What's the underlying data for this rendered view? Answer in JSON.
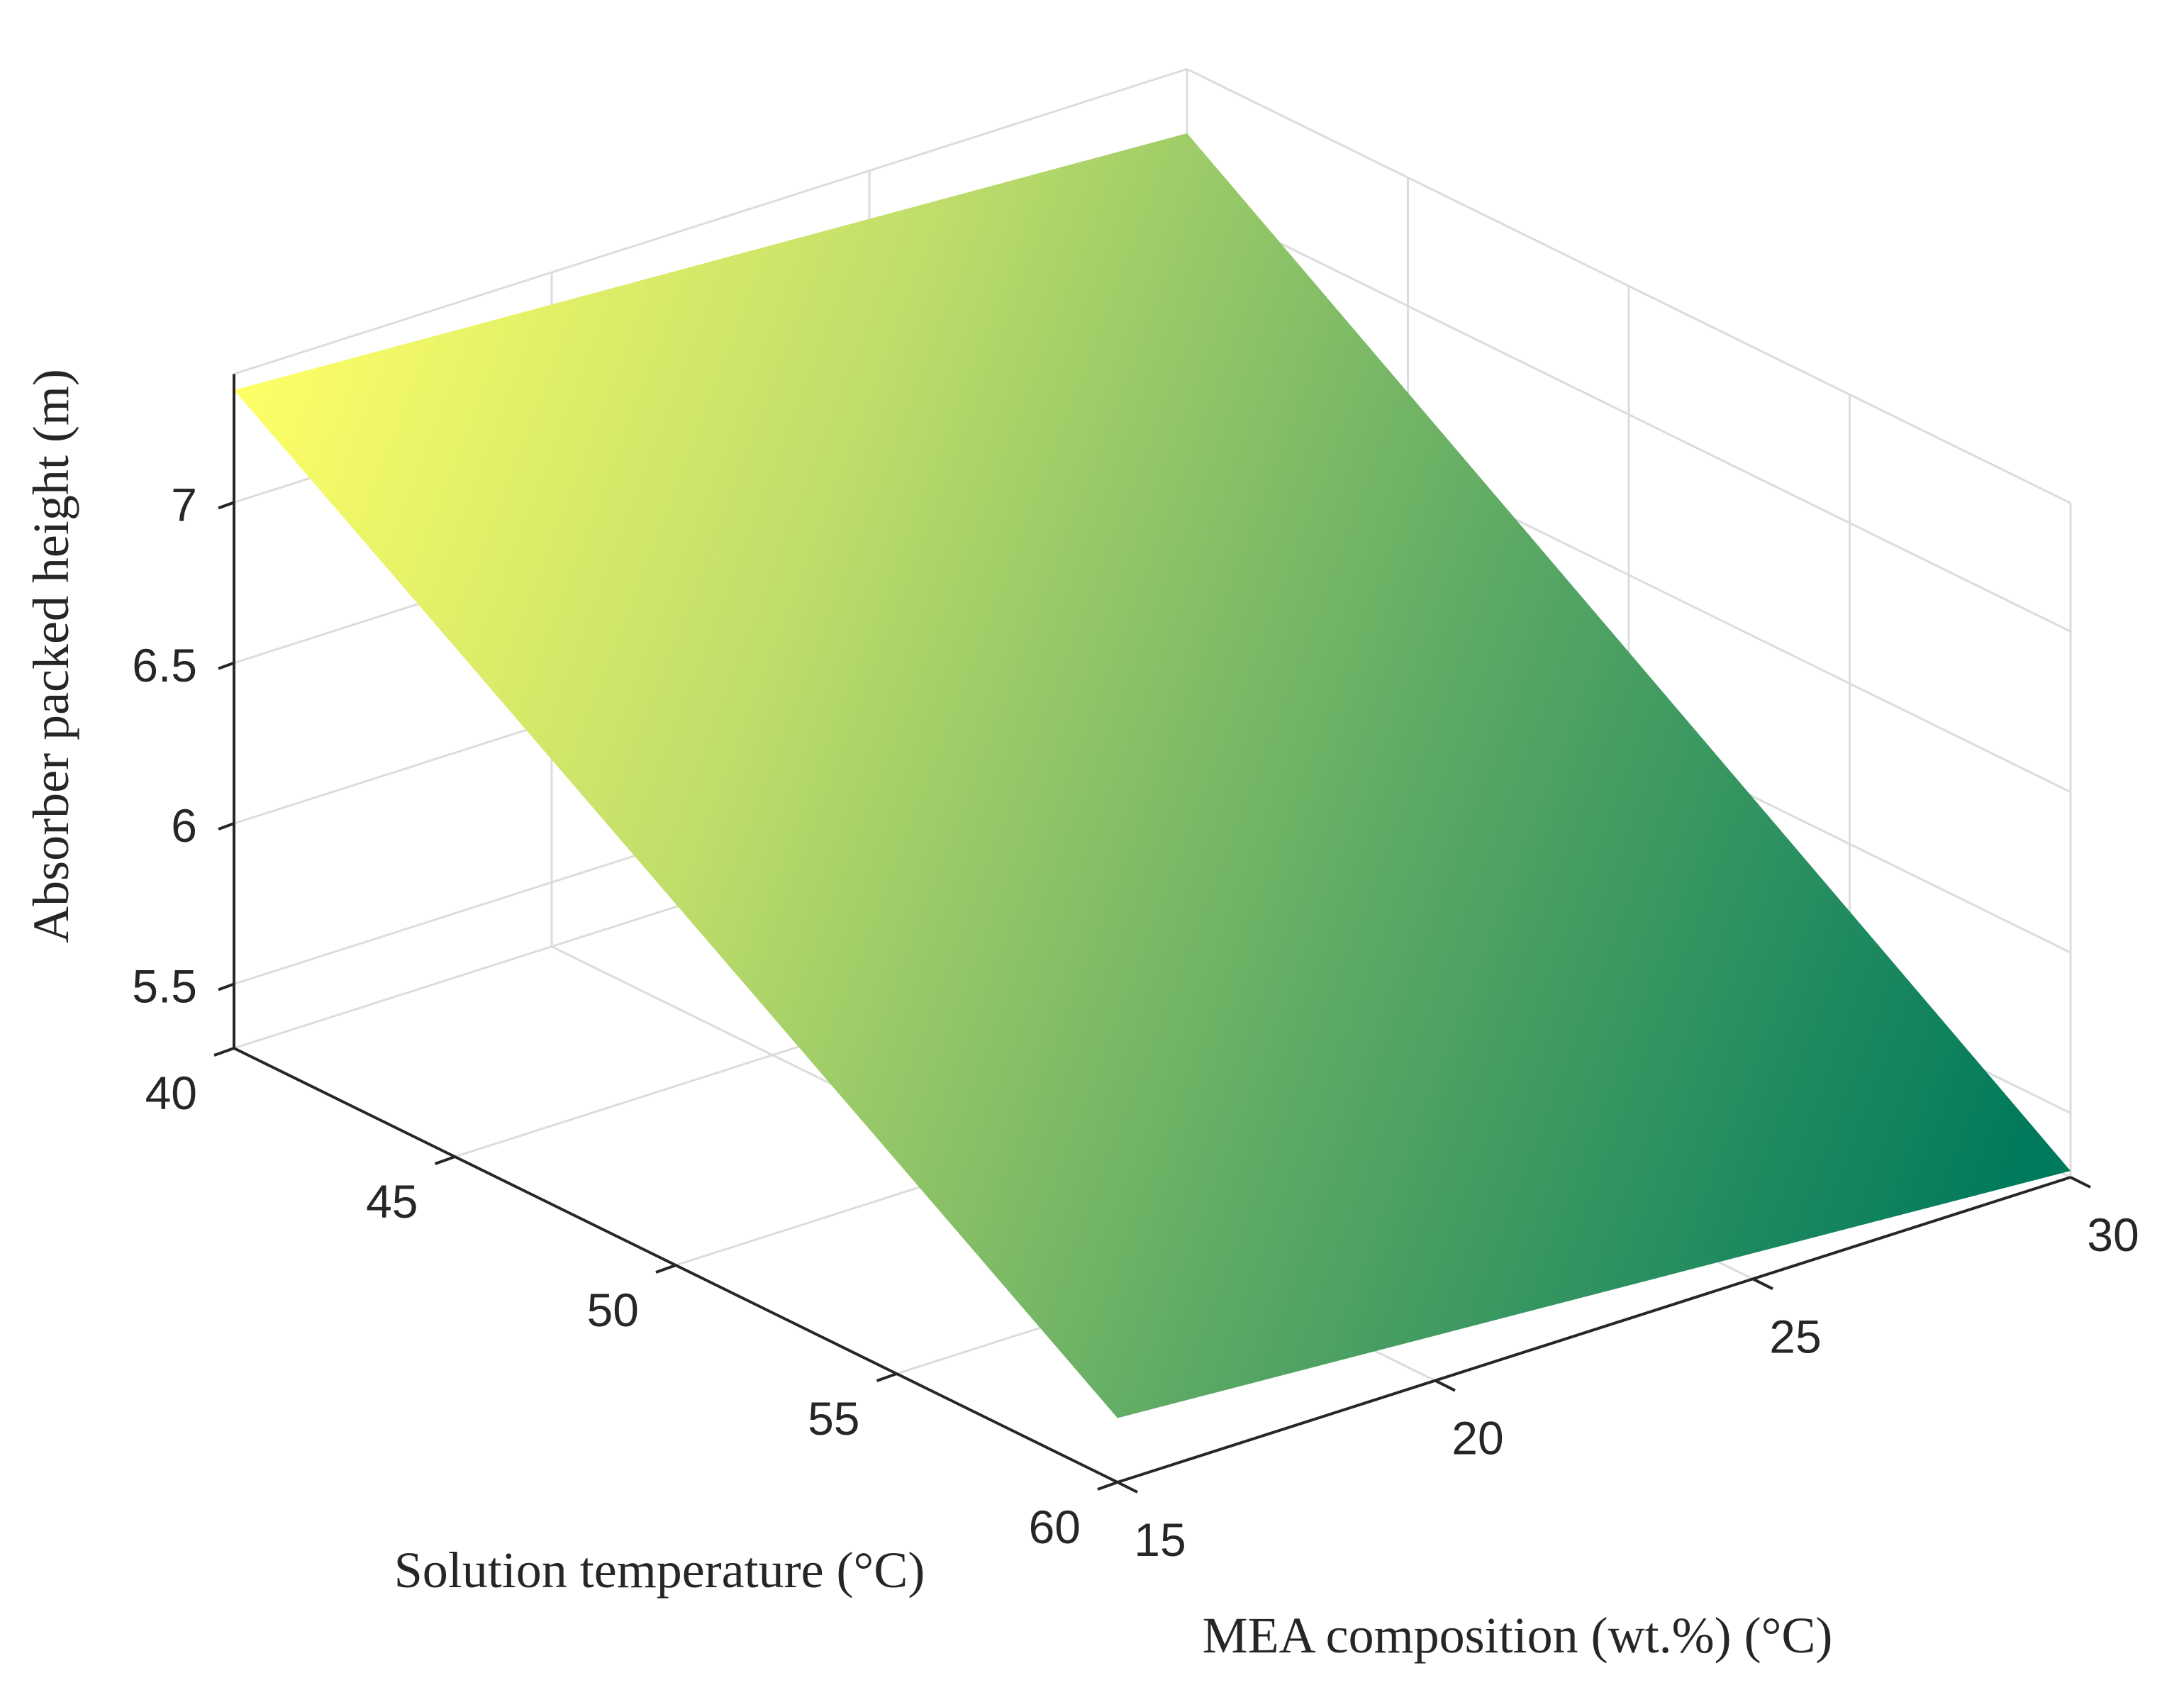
{
  "chart_data": {
    "type": "surface",
    "title": "",
    "xlabel": "MEA composition (wt.%) (°C)",
    "ylabel": "Solution temperature (°C)",
    "zlabel": "Absorber packed height (m)",
    "x_ticks": [
      "15",
      "20",
      "25",
      "30"
    ],
    "y_ticks": [
      "40",
      "45",
      "50",
      "55",
      "60"
    ],
    "z_ticks": [
      "5.5",
      "6",
      "6.5",
      "7"
    ],
    "x_range": [
      15,
      30
    ],
    "y_range": [
      40,
      60
    ],
    "z_range": [
      5.3,
      7.4
    ],
    "grid": true,
    "colormap": [
      "#007a5c",
      "#5aa864",
      "#c0de6a",
      "#ffff66"
    ],
    "corners": [
      {
        "mea": 15,
        "temperature": 40,
        "height": 7.35
      },
      {
        "mea": 30,
        "temperature": 40,
        "height": 7.2
      },
      {
        "mea": 30,
        "temperature": 60,
        "height": 5.32
      },
      {
        "mea": 15,
        "temperature": 60,
        "height": 5.5
      }
    ]
  }
}
